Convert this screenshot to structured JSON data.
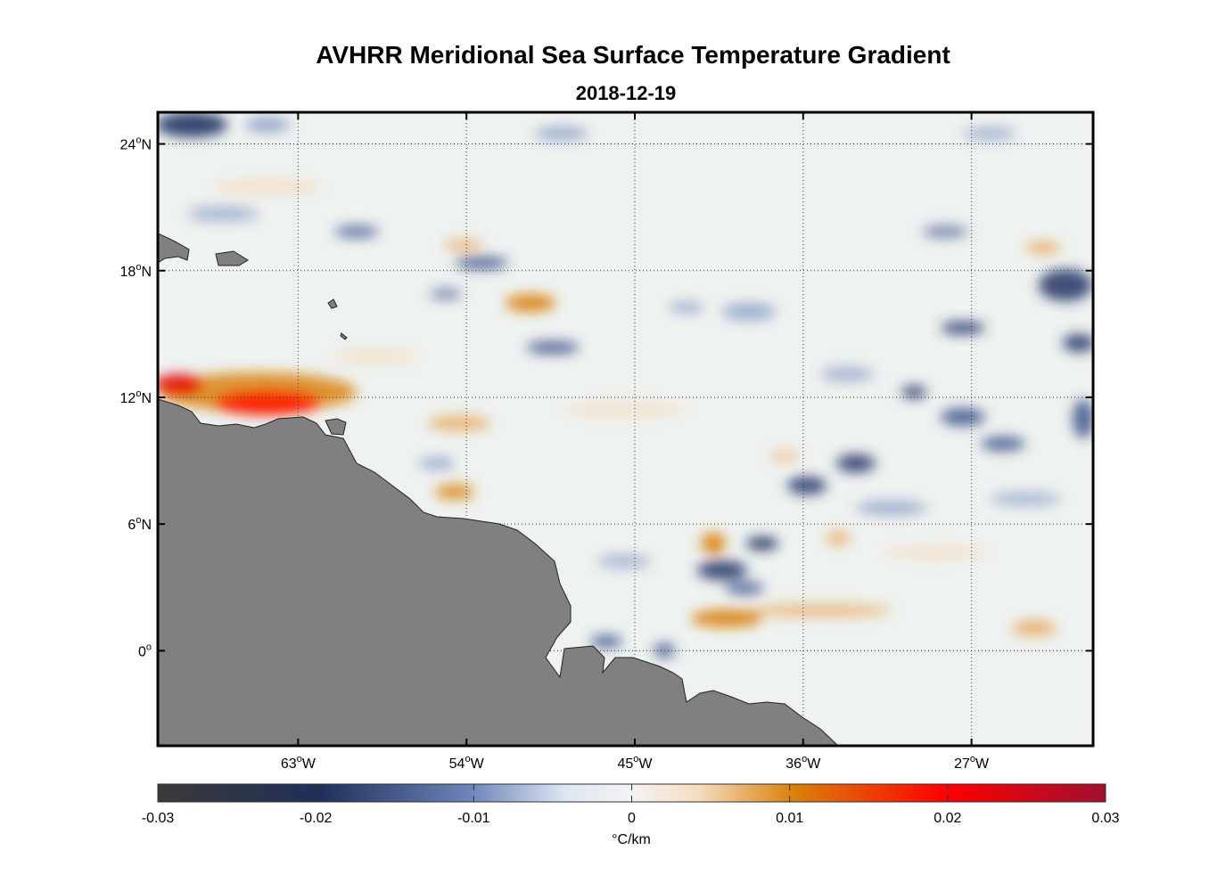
{
  "title": "AVHRR Meridional Sea Surface Temperature Gradient",
  "subtitle": "2018-12-19",
  "map": {
    "lon_range": [
      -70.5,
      -20.5
    ],
    "lat_range": [
      -4.5,
      25.5
    ],
    "lon_ticks": [
      {
        "value": -63,
        "deg": "63",
        "hemi": "W"
      },
      {
        "value": -54,
        "deg": "54",
        "hemi": "W"
      },
      {
        "value": -45,
        "deg": "45",
        "hemi": "W"
      },
      {
        "value": -36,
        "deg": "36",
        "hemi": "W"
      },
      {
        "value": -27,
        "deg": "27",
        "hemi": "W"
      }
    ],
    "lat_ticks": [
      {
        "value": 24,
        "deg": "24",
        "hemi": "N"
      },
      {
        "value": 18,
        "deg": "18",
        "hemi": "N"
      },
      {
        "value": 12,
        "deg": "12",
        "hemi": "N"
      },
      {
        "value": 6,
        "deg": "6",
        "hemi": "N"
      },
      {
        "value": 0,
        "deg": "0",
        "hemi": ""
      }
    ],
    "gridlines": "dotted",
    "land_color": "#808080",
    "ocean_background": "#eef2f0"
  },
  "colorbar": {
    "min": -0.03,
    "max": 0.03,
    "tick_labels": [
      "-0.03",
      "-0.02",
      "-0.01",
      "0",
      "0.01",
      "0.02",
      "0.03"
    ],
    "unit_label": "°C/km",
    "colors": [
      "#3a3a3a",
      "#1f2f5a",
      "#6d85b9",
      "#f3f4f3",
      "#d9820b",
      "#ff0000",
      "#a01030"
    ]
  }
}
